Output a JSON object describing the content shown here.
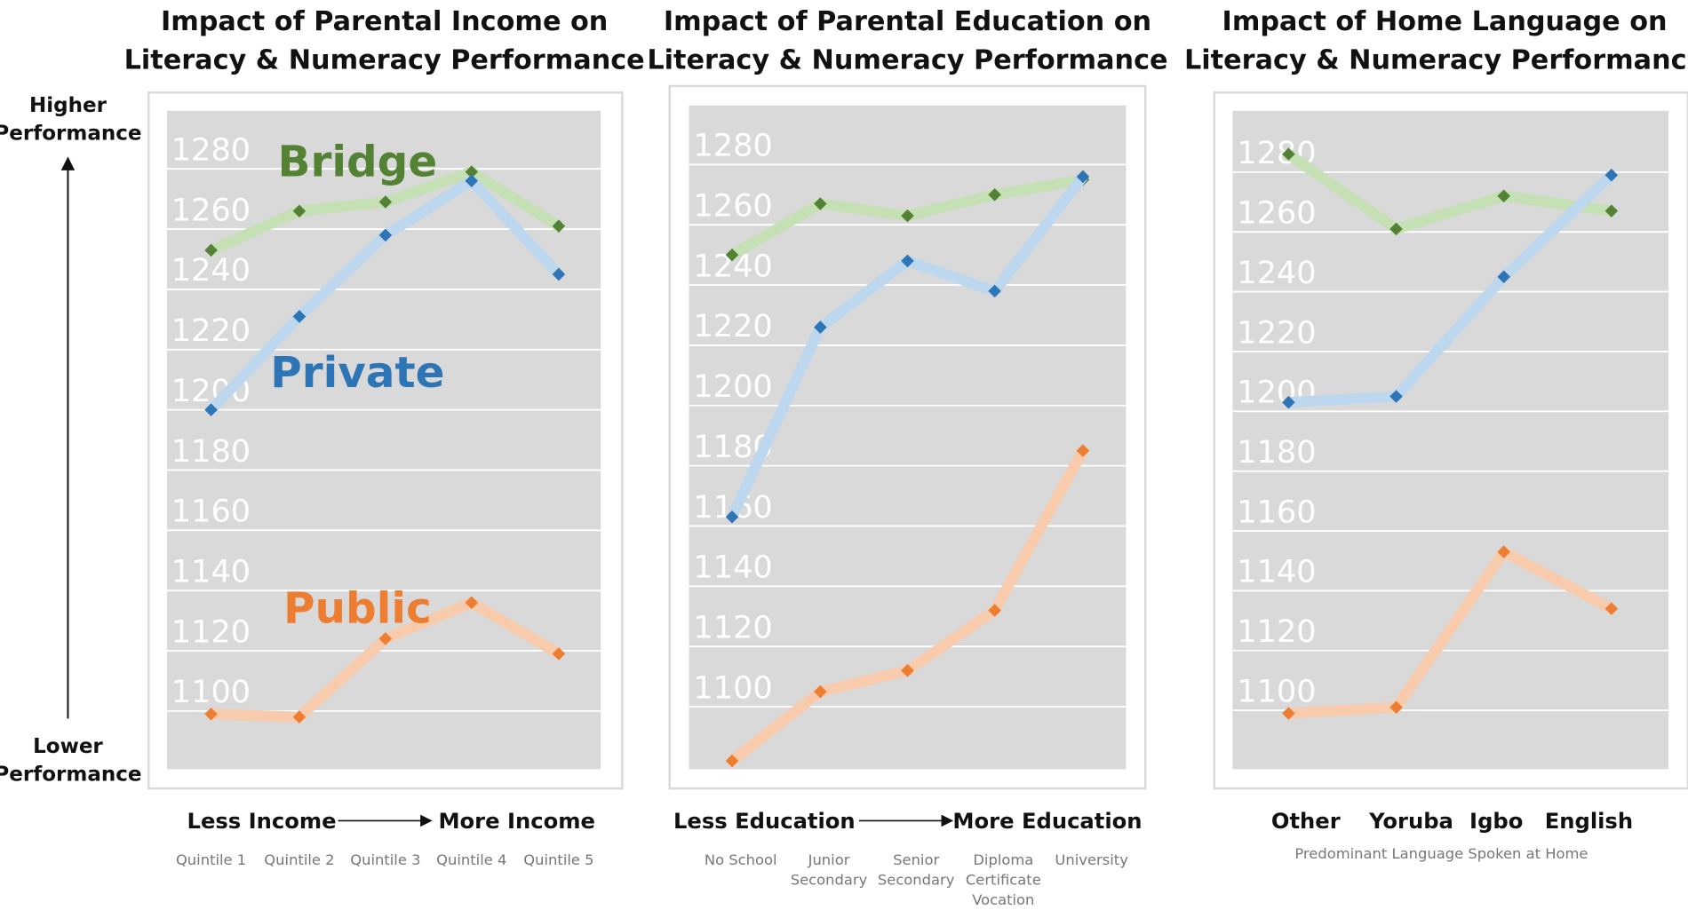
{
  "side_axis": {
    "top": [
      "Higher",
      "Performance"
    ],
    "bottom": [
      "Lower",
      "Performance"
    ]
  },
  "colors": {
    "Bridge": {
      "line": "#c5e0b4",
      "marker": "#548235",
      "label": "#548235"
    },
    "Private": {
      "line": "#bdd7ee",
      "marker": "#2e75b6",
      "label": "#2e75b6"
    },
    "Public": {
      "line": "#f8cbad",
      "marker": "#ed7d31",
      "label": "#ed7d31"
    }
  },
  "chart_data": [
    {
      "type": "line",
      "title": [
        "Impact of Parental Income on",
        "Literacy & Numeracy Performance"
      ],
      "direction": {
        "left": "Less Income",
        "right": "More Income"
      },
      "categories": [
        [
          "Quintile 1"
        ],
        [
          "Quintile 2"
        ],
        [
          "Quintile 3"
        ],
        [
          "Quintile 4"
        ],
        [
          "Quintile 5"
        ]
      ],
      "yticks": [
        "1280",
        "1260",
        "1240",
        "1220",
        "1200",
        "1180",
        "1160",
        "1140",
        "1120",
        "1100"
      ],
      "ylim": [
        1080,
        1300
      ],
      "series_labels_shown": true,
      "series": [
        {
          "name": "Bridge",
          "values": [
            1253,
            1266,
            1269,
            1279,
            1261
          ]
        },
        {
          "name": "Private",
          "values": [
            1200,
            1231,
            1258,
            1276,
            1245
          ]
        },
        {
          "name": "Public",
          "values": [
            1099,
            1098,
            1124,
            1136,
            1119
          ]
        }
      ]
    },
    {
      "type": "line",
      "title": [
        "Impact of Parental Education on",
        "Literacy & Numeracy Performance"
      ],
      "direction": {
        "left": "Less Education",
        "right": "More Education"
      },
      "categories": [
        [
          "No School"
        ],
        [
          "Junior",
          "Secondary"
        ],
        [
          "Senior",
          "Secondary"
        ],
        [
          "Diploma",
          "Certificate",
          "Vocation"
        ],
        [
          "University"
        ]
      ],
      "yticks": [
        "1280",
        "1260",
        "1240",
        "1220",
        "1200",
        "1180",
        "1160",
        "1140",
        "1120",
        "1100"
      ],
      "ylim": [
        1080,
        1300
      ],
      "series": [
        {
          "name": "Bridge",
          "values": [
            1250,
            1267,
            1263,
            1270,
            1275
          ]
        },
        {
          "name": "Private",
          "values": [
            1163,
            1226,
            1248,
            1238,
            1276
          ]
        },
        {
          "name": "Public",
          "values": [
            1082,
            1105,
            1112,
            1132,
            1185
          ]
        }
      ]
    },
    {
      "type": "line",
      "title": [
        "Impact of Home Language on",
        "Literacy & Numeracy Performance"
      ],
      "categories_bold": [
        "Other",
        "Yoruba",
        "Igbo",
        "English"
      ],
      "xlabel": "Predominant Language Spoken at Home",
      "yticks": [
        "1280",
        "1260",
        "1240",
        "1220",
        "1200",
        "1180",
        "1160",
        "1140",
        "1120",
        "1100"
      ],
      "ylim": [
        1080,
        1300
      ],
      "series": [
        {
          "name": "Bridge",
          "values": [
            1286,
            1261,
            1272,
            1267
          ]
        },
        {
          "name": "Private",
          "values": [
            1203,
            1205,
            1245,
            1279
          ]
        },
        {
          "name": "Public",
          "values": [
            1099,
            1101,
            1153,
            1134
          ]
        }
      ]
    }
  ]
}
